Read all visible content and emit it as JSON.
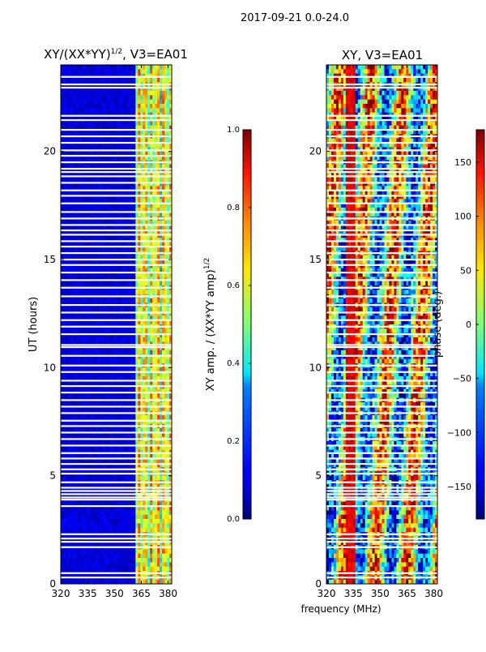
{
  "figure": {
    "suptitle": "2017-09-21 0.0-24.0",
    "xlabel": "frequency (MHz)"
  },
  "chart_data": [
    {
      "type": "heatmap",
      "title": "XY/(XX*YY)",
      "title_exponent": "1/2",
      "title_suffix": ", V3=EA01",
      "xlabel": "",
      "ylabel": "UT (hours)",
      "xlim": [
        320,
        382
      ],
      "ylim": [
        0,
        24
      ],
      "xticks": [
        "320",
        "335",
        "350",
        "365",
        "380"
      ],
      "xtick_values": [
        320,
        335,
        350,
        365,
        380
      ],
      "yticks": [
        "0",
        "5",
        "10",
        "15",
        "20"
      ],
      "ytick_values": [
        0,
        5,
        10,
        15,
        20
      ],
      "colorbar": {
        "label": "XY amp. / (XX*YY amp)",
        "label_exponent": "1/2",
        "range": [
          0.0,
          1.0
        ],
        "ticks": [
          "0.0",
          "0.2",
          "0.4",
          "0.6",
          "0.8",
          "1.0"
        ],
        "tick_values": [
          0.0,
          0.2,
          0.4,
          0.6,
          0.8,
          1.0
        ]
      },
      "colormap": "jet",
      "gap_hours": [
        0.3,
        0.5,
        1.7,
        1.95,
        2.1,
        2.3,
        3.6,
        3.9,
        4.0,
        4.15,
        4.3,
        4.45,
        4.7,
        5.1,
        5.3,
        5.55,
        5.8,
        6.05,
        6.4,
        6.7,
        7.0,
        7.3,
        7.55,
        7.9,
        8.2,
        8.5,
        8.85,
        9.15,
        9.4,
        9.8,
        10.1,
        10.55,
        10.95,
        11.05,
        11.55,
        11.9,
        12.2,
        12.55,
        12.9,
        13.3,
        13.7,
        14.05,
        14.4,
        14.75,
        15.0,
        15.3,
        15.6,
        15.85,
        16.15,
        16.35,
        16.6,
        16.9,
        17.2,
        17.6,
        17.95,
        18.2,
        18.55,
        18.85,
        19.05,
        19.2,
        19.5,
        19.8,
        20.05,
        20.4,
        20.7,
        21.0,
        21.45,
        21.65,
        22.95,
        23.1,
        23.45
      ]
    },
    {
      "type": "heatmap",
      "title": "XY, V3=EA01",
      "xlabel": "",
      "ylabel": "",
      "xlim": [
        320,
        382
      ],
      "ylim": [
        0,
        24
      ],
      "xticks": [
        "320",
        "335",
        "350",
        "365",
        "380"
      ],
      "xtick_values": [
        320,
        335,
        350,
        365,
        380
      ],
      "yticks": [
        "0",
        "5",
        "10",
        "15",
        "20"
      ],
      "ytick_values": [
        0,
        5,
        10,
        15,
        20
      ],
      "colorbar": {
        "label": "phase (deg.)",
        "range": [
          -180,
          180
        ],
        "ticks": [
          "−150",
          "−100",
          "−50",
          "0",
          "50",
          "100",
          "150"
        ],
        "tick_values": [
          -150,
          -100,
          -50,
          0,
          50,
          100,
          150
        ]
      },
      "colormap": "jet",
      "gap_hours": [
        0.3,
        0.5,
        1.7,
        1.95,
        2.1,
        2.3,
        3.6,
        3.9,
        4.0,
        4.15,
        4.3,
        4.45,
        4.7,
        5.1,
        5.3,
        5.55,
        5.8,
        6.05,
        6.4,
        6.7,
        7.0,
        7.3,
        7.55,
        7.9,
        8.2,
        8.5,
        8.85,
        9.15,
        9.4,
        9.8,
        10.1,
        10.55,
        10.95,
        11.05,
        11.55,
        11.9,
        12.2,
        12.55,
        12.9,
        13.3,
        13.7,
        14.05,
        14.4,
        14.75,
        15.0,
        15.3,
        15.6,
        15.85,
        16.15,
        16.35,
        16.6,
        16.9,
        17.2,
        17.6,
        17.95,
        18.2,
        18.55,
        18.85,
        19.05,
        19.2,
        19.5,
        19.8,
        20.05,
        20.4,
        20.7,
        21.0,
        21.45,
        21.65,
        22.95,
        23.1,
        23.45
      ]
    }
  ]
}
